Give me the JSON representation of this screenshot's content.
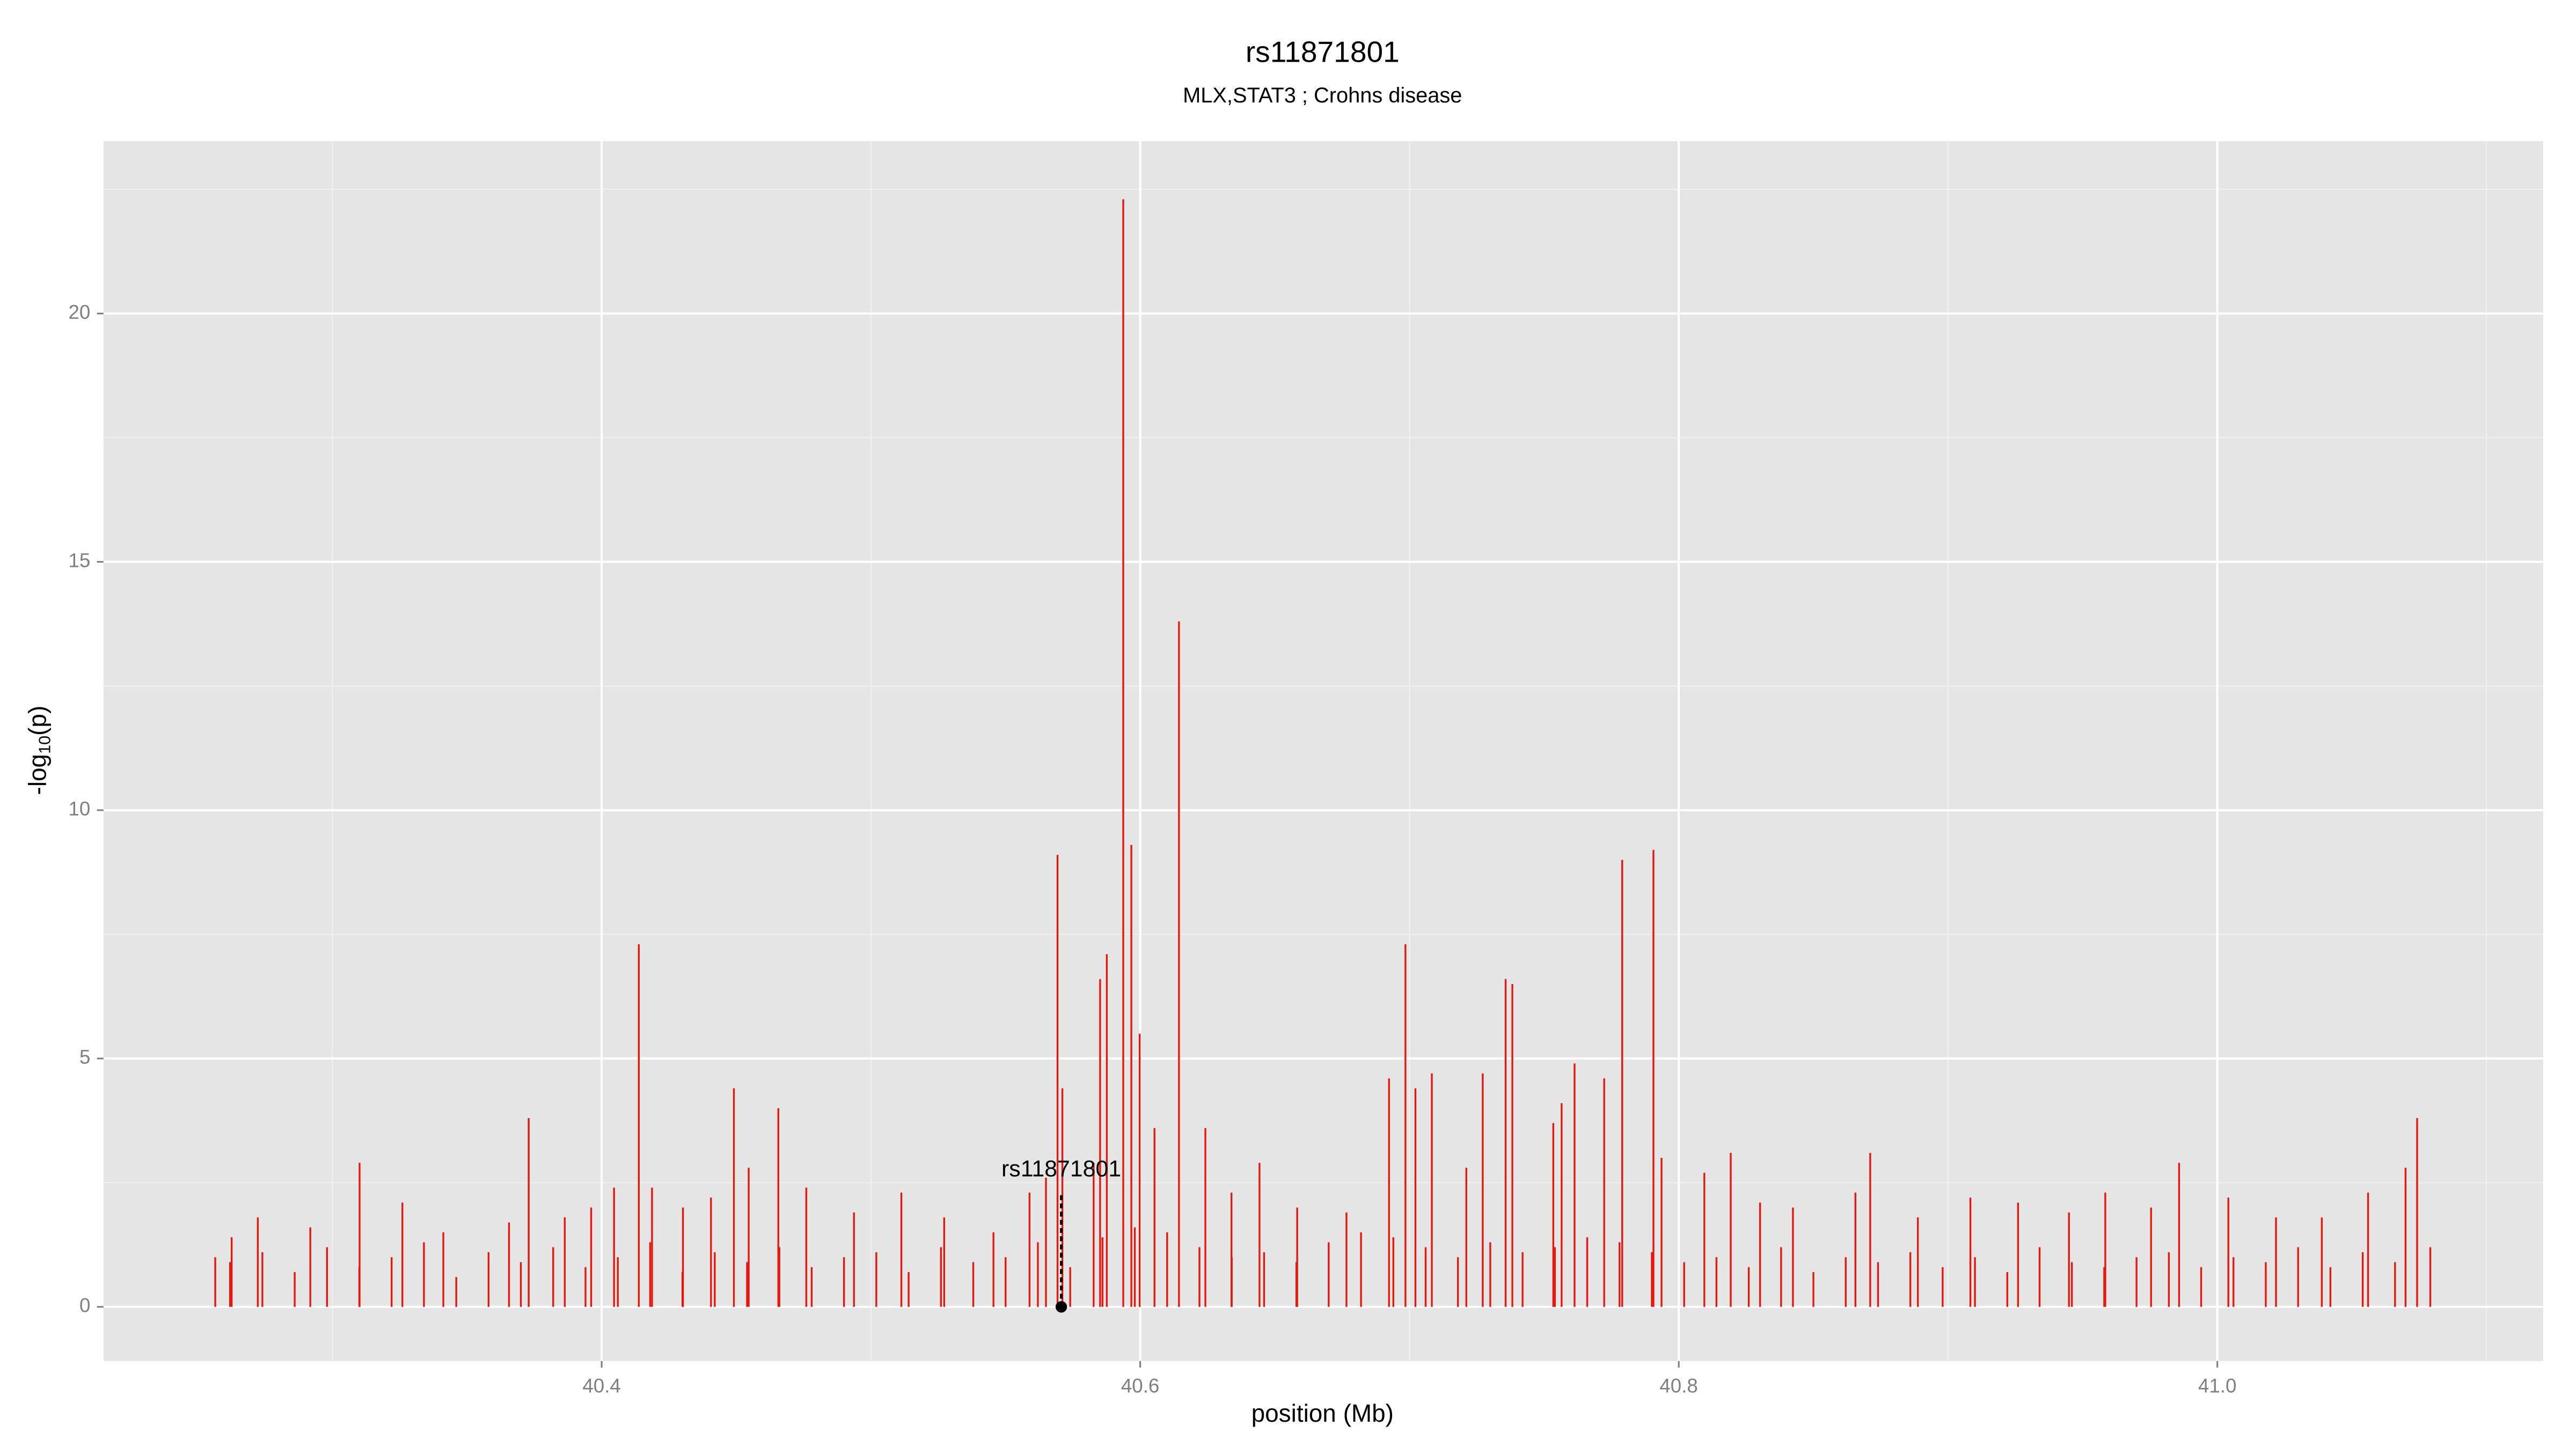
{
  "chart_data": {
    "type": "spike",
    "title": "rs11871801",
    "subtitle": "MLX,STAT3 ; Crohns disease",
    "xlabel": "position (Mb)",
    "ylabel": {
      "main": "-log",
      "sub": "10",
      "end": "(p)"
    },
    "xlim": [
      40.215,
      41.121
    ],
    "ylim": [
      -1.09,
      23.47
    ],
    "xticks": [
      40.4,
      40.6,
      40.8,
      {
        "value": 41,
        "label": "41.0"
      }
    ],
    "yticks": [
      0,
      5,
      10,
      15,
      20
    ],
    "x_minor": [
      40.3,
      40.5,
      40.7,
      40.9,
      41.1
    ],
    "y_minor": [
      2.5,
      7.5,
      12.5,
      17.5,
      22.5
    ],
    "grid": true,
    "panel_color": "#e5e5e5",
    "color": "#e8160c",
    "x": [
      40.2565,
      40.2626,
      40.2723,
      40.2918,
      40.3101,
      40.326,
      40.3412,
      40.3656,
      40.3729,
      40.3863,
      40.3961,
      40.4046,
      40.4138,
      40.4187,
      40.4302,
      40.4406,
      40.4491,
      40.4546,
      40.4656,
      40.476,
      40.4937,
      40.5113,
      40.5272,
      40.5455,
      40.5589,
      40.565,
      40.5693,
      40.5711,
      40.5827,
      40.5851,
      40.5876,
      40.5937,
      40.5967,
      40.5998,
      40.6053,
      40.6144,
      40.6242,
      40.6339,
      40.6443,
      40.6583,
      40.6766,
      40.6924,
      40.6985,
      40.7022,
      40.7083,
      40.7211,
      40.7272,
      40.7357,
      40.7382,
      40.7534,
      40.7565,
      40.7613,
      40.7723,
      40.779,
      40.7906,
      40.7936,
      40.8095,
      40.8193,
      40.8302,
      40.8424,
      40.8656,
      40.8711,
      40.8888,
      40.9083,
      40.926,
      40.9449,
      40.9584,
      40.9754,
      40.9858,
      41.0041,
      41.0218,
      41.0388,
      41.056,
      41.0699,
      41.0742,
      41.0791,
      40.262,
      40.274,
      40.286,
      40.298,
      40.31,
      40.322,
      40.334,
      40.346,
      40.358,
      40.37,
      40.382,
      40.394,
      40.406,
      40.418,
      40.43,
      40.442,
      40.454,
      40.466,
      40.478,
      40.49,
      40.502,
      40.514,
      40.526,
      40.538,
      40.55,
      40.562,
      40.574,
      40.586,
      40.598,
      40.61,
      40.622,
      40.634,
      40.646,
      40.658,
      40.67,
      40.682,
      40.694,
      40.706,
      40.718,
      40.73,
      40.742,
      40.754,
      40.766,
      40.778,
      40.79,
      40.802,
      40.814,
      40.826,
      40.838,
      40.85,
      40.862,
      40.874,
      40.886,
      40.898,
      40.91,
      40.922,
      40.934,
      40.946,
      40.958,
      40.97,
      40.982,
      40.994,
      41.006,
      41.018,
      41.03,
      41.042,
      41.054,
      41.066
    ],
    "values": [
      1.0,
      1.4,
      1.8,
      1.6,
      2.9,
      2.1,
      1.5,
      1.7,
      3.8,
      1.8,
      2.0,
      2.4,
      7.3,
      2.4,
      2.0,
      2.2,
      4.4,
      2.8,
      4.0,
      2.4,
      1.9,
      2.3,
      1.8,
      1.5,
      2.3,
      2.6,
      9.1,
      4.4,
      2.9,
      6.6,
      7.1,
      22.3,
      9.3,
      5.5,
      3.6,
      13.8,
      3.6,
      2.3,
      2.9,
      2.0,
      1.9,
      4.6,
      7.3,
      4.4,
      4.7,
      2.8,
      4.7,
      6.6,
      6.5,
      3.7,
      4.1,
      4.9,
      4.6,
      9.0,
      9.2,
      3.0,
      2.7,
      3.1,
      2.1,
      2.0,
      2.3,
      3.1,
      1.8,
      2.2,
      2.1,
      1.9,
      2.3,
      2.0,
      2.9,
      2.2,
      1.8,
      1.8,
      2.3,
      2.8,
      3.8,
      1.2,
      0.9,
      1.1,
      0.7,
      1.2,
      0.8,
      1.0,
      1.3,
      0.6,
      1.1,
      0.9,
      1.2,
      0.8,
      1.0,
      1.3,
      0.7,
      1.1,
      0.9,
      1.2,
      0.8,
      1.0,
      1.1,
      0.7,
      1.2,
      0.9,
      1.0,
      1.3,
      0.8,
      1.4,
      1.6,
      1.5,
      1.2,
      1.0,
      1.1,
      0.9,
      1.3,
      1.5,
      1.4,
      1.2,
      1.0,
      1.3,
      1.1,
      1.2,
      1.4,
      1.3,
      1.1,
      0.9,
      1.0,
      0.8,
      1.2,
      0.7,
      1.0,
      0.9,
      1.1,
      0.8,
      1.0,
      0.7,
      1.2,
      0.9,
      0.8,
      1.0,
      1.1,
      0.8,
      1.0,
      0.9,
      1.2,
      0.8,
      1.1,
      0.9
    ],
    "annotation": {
      "label": "rs11871801",
      "x": 40.5707,
      "y": 0,
      "line_top": 2.3,
      "label_y": 2.75,
      "color": "#000000"
    }
  }
}
